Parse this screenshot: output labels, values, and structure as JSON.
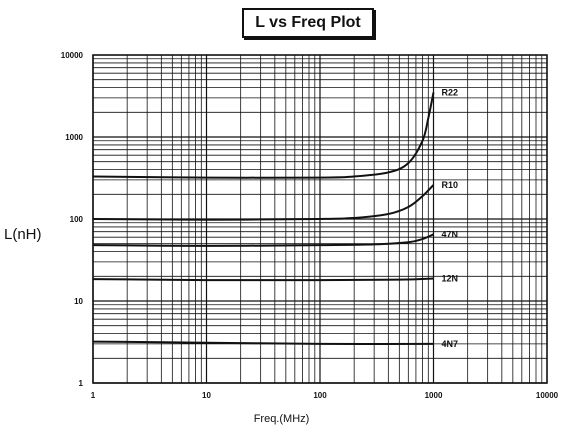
{
  "chart_data": {
    "type": "line",
    "title": "L vs Freq Plot",
    "xlabel": "Freq.(MHz)",
    "ylabel": "L(nH)",
    "x_scale": "log",
    "y_scale": "log",
    "xlim": [
      1,
      10000
    ],
    "ylim": [
      1,
      10000
    ],
    "grid": true,
    "legend": "inline labels at line ends",
    "x_ticks": [
      "1",
      "10",
      "100",
      "1000",
      "10000"
    ],
    "y_ticks": [
      "1",
      "10",
      "100",
      "1000",
      "10000"
    ],
    "series": [
      {
        "name": "R22",
        "x": [
          1,
          10,
          100,
          200,
          400,
          600,
          800,
          900,
          1000
        ],
        "y": [
          330,
          320,
          320,
          330,
          370,
          480,
          900,
          1700,
          3500
        ]
      },
      {
        "name": "R10",
        "x": [
          1,
          10,
          100,
          200,
          400,
          600,
          800,
          1000
        ],
        "y": [
          100,
          98,
          100,
          103,
          115,
          140,
          190,
          260
        ]
      },
      {
        "name": "47N",
        "x": [
          1,
          10,
          100,
          300,
          600,
          800,
          1000
        ],
        "y": [
          48,
          47,
          48,
          49,
          52,
          57,
          65
        ]
      },
      {
        "name": "12N",
        "x": [
          1,
          10,
          100,
          500,
          1000
        ],
        "y": [
          18.5,
          18,
          18,
          18.2,
          18.8
        ]
      },
      {
        "name": "4N7",
        "x": [
          1,
          10,
          100,
          1000
        ],
        "y": [
          3.2,
          3.1,
          3.0,
          3.0
        ]
      }
    ]
  }
}
